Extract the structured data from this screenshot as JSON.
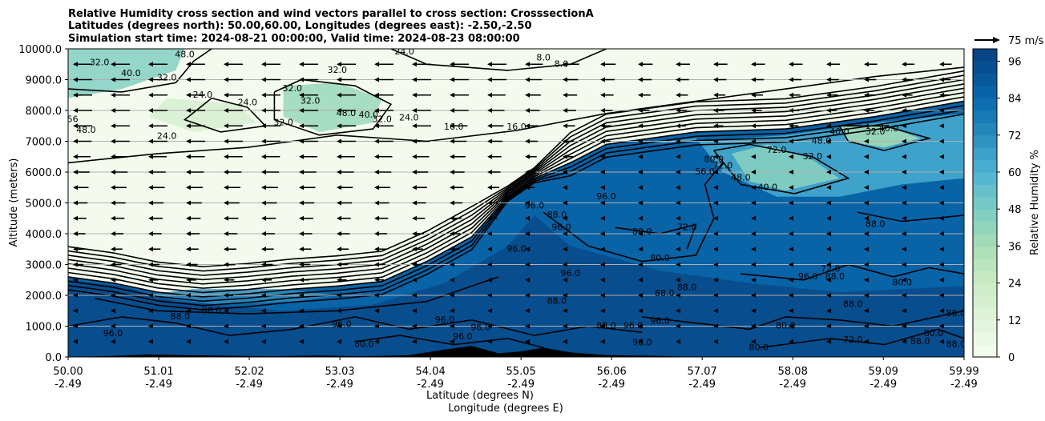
{
  "chart_data": {
    "type": "heatmap",
    "title_lines": [
      "Relative Humidity cross section and wind vectors parallel to cross section: CrosssectionA",
      "Latitudes (degrees north): 50.00,60.00, Longitudes (degrees east): -2.50,-2.50",
      "Simulation start time: 2024-08-21 00:00:00, Valid time: 2024-08-23 08:00:00"
    ],
    "ylabel": "Altitude (meters)",
    "xlabel_lat": "Latitude (degrees N)",
    "xlabel_lon": "Longitude (degrees E)",
    "x_range": [
      50.0,
      59.99
    ],
    "ylim": [
      0,
      10000
    ],
    "x_ticks_lat": [
      "50.00",
      "51.01",
      "52.02",
      "53.03",
      "54.04",
      "55.05",
      "56.06",
      "57.07",
      "58.08",
      "59.09",
      "59.99"
    ],
    "x_ticks_lon": [
      "-2.49",
      "-2.49",
      "-2.49",
      "-2.49",
      "-2.49",
      "-2.49",
      "-2.49",
      "-2.49",
      "-2.49",
      "-2.49",
      "-2.49"
    ],
    "y_ticks": [
      "0.0",
      "1000.0",
      "2000.0",
      "3000.0",
      "4000.0",
      "5000.0",
      "6000.0",
      "7000.0",
      "8000.0",
      "9000.0",
      "10000.0"
    ],
    "grid": "horizontal",
    "colorbar": {
      "label": "Relative Humidity %",
      "range": [
        0,
        100
      ],
      "ticks": [
        "0",
        "12",
        "24",
        "36",
        "48",
        "60",
        "72",
        "84",
        "96"
      ],
      "colormap": "GnBu",
      "levels": 25
    },
    "wind_reference": {
      "label": "75 m/s"
    },
    "dry_air_boundary": [
      [
        50.0,
        2600
      ],
      [
        50.5,
        2400
      ],
      [
        51.0,
        2100
      ],
      [
        51.5,
        1950
      ],
      [
        52.0,
        2050
      ],
      [
        52.5,
        2200
      ],
      [
        53.0,
        2300
      ],
      [
        53.5,
        2450
      ],
      [
        54.0,
        3100
      ],
      [
        54.5,
        3900
      ],
      [
        54.9,
        5200
      ],
      [
        55.2,
        5800
      ],
      [
        55.6,
        6300
      ],
      [
        56.0,
        6900
      ],
      [
        57.0,
        7300
      ],
      [
        58.0,
        7400
      ],
      [
        59.0,
        7800
      ],
      [
        59.99,
        8300
      ]
    ],
    "contour_labels": [
      {
        "text": "32.0",
        "x": 50.35,
        "y": 9550
      },
      {
        "text": "40.0",
        "x": 50.7,
        "y": 9200
      },
      {
        "text": "48.0",
        "x": 51.3,
        "y": 9800
      },
      {
        "text": "32.0",
        "x": 51.1,
        "y": 9050
      },
      {
        "text": "24.0",
        "x": 51.5,
        "y": 8500
      },
      {
        "text": "24.0",
        "x": 52.0,
        "y": 8250
      },
      {
        "text": "24.0",
        "x": 51.1,
        "y": 7150
      },
      {
        "text": "48.0",
        "x": 50.2,
        "y": 7350
      },
      {
        "text": "56",
        "x": 50.05,
        "y": 7700
      },
      {
        "text": "32.0",
        "x": 52.5,
        "y": 8700
      },
      {
        "text": "32.0",
        "x": 53.0,
        "y": 9300
      },
      {
        "text": "32.0",
        "x": 52.7,
        "y": 8300
      },
      {
        "text": "48.0",
        "x": 53.1,
        "y": 7900
      },
      {
        "text": "40.0",
        "x": 53.35,
        "y": 7850
      },
      {
        "text": "32.0",
        "x": 53.5,
        "y": 7700
      },
      {
        "text": "24.0",
        "x": 53.8,
        "y": 7750
      },
      {
        "text": "32.0",
        "x": 52.4,
        "y": 7600
      },
      {
        "text": "24.0",
        "x": 53.75,
        "y": 9900
      },
      {
        "text": "16.0",
        "x": 55.0,
        "y": 7450
      },
      {
        "text": "16.0",
        "x": 54.3,
        "y": 7450
      },
      {
        "text": "8.0",
        "x": 55.3,
        "y": 9700
      },
      {
        "text": "8.0",
        "x": 55.5,
        "y": 9500
      },
      {
        "text": "96.0",
        "x": 55.2,
        "y": 4900
      },
      {
        "text": "96.0",
        "x": 55.5,
        "y": 4200
      },
      {
        "text": "96.0",
        "x": 56.0,
        "y": 5200
      },
      {
        "text": "88.0",
        "x": 55.45,
        "y": 4600
      },
      {
        "text": "80.0",
        "x": 56.4,
        "y": 4050
      },
      {
        "text": "80.0",
        "x": 56.6,
        "y": 3200
      },
      {
        "text": "72.0",
        "x": 56.9,
        "y": 4200
      },
      {
        "text": "96.0",
        "x": 55.0,
        "y": 3500
      },
      {
        "text": "96.0",
        "x": 55.6,
        "y": 2700
      },
      {
        "text": "88.0",
        "x": 55.45,
        "y": 1800
      },
      {
        "text": "88.0",
        "x": 56.0,
        "y": 1000
      },
      {
        "text": "96.0",
        "x": 56.6,
        "y": 1150
      },
      {
        "text": "88.0",
        "x": 56.65,
        "y": 2050
      },
      {
        "text": "88.0",
        "x": 56.9,
        "y": 2250
      },
      {
        "text": "88.0",
        "x": 51.6,
        "y": 1500
      },
      {
        "text": "88.0",
        "x": 51.25,
        "y": 1300
      },
      {
        "text": "96.0",
        "x": 50.5,
        "y": 750
      },
      {
        "text": "80.0",
        "x": 53.3,
        "y": 400
      },
      {
        "text": "96.0",
        "x": 53.05,
        "y": 1050
      },
      {
        "text": "96.0",
        "x": 54.4,
        "y": 650
      },
      {
        "text": "96.0",
        "x": 54.2,
        "y": 1200
      },
      {
        "text": "96.0",
        "x": 54.6,
        "y": 950
      },
      {
        "text": "96.0",
        "x": 56.3,
        "y": 1000
      },
      {
        "text": "96.0",
        "x": 56.4,
        "y": 450
      },
      {
        "text": "96.0",
        "x": 58.25,
        "y": 2600
      },
      {
        "text": "88.0",
        "x": 58.55,
        "y": 2600
      },
      {
        "text": "88.0",
        "x": 58.75,
        "y": 1700
      },
      {
        "text": "72.0",
        "x": 58.5,
        "y": 2850
      },
      {
        "text": "88.0",
        "x": 59.0,
        "y": 4300
      },
      {
        "text": "80.0",
        "x": 59.3,
        "y": 2400
      },
      {
        "text": "80.0",
        "x": 58.0,
        "y": 1000
      },
      {
        "text": "80.0",
        "x": 57.7,
        "y": 300
      },
      {
        "text": "72.0",
        "x": 58.75,
        "y": 550
      },
      {
        "text": "80.0",
        "x": 59.65,
        "y": 750
      },
      {
        "text": "88.0",
        "x": 59.5,
        "y": 500
      },
      {
        "text": "80.0",
        "x": 59.9,
        "y": 1400
      },
      {
        "text": "88.0",
        "x": 59.9,
        "y": 400
      },
      {
        "text": "40.0",
        "x": 58.6,
        "y": 7300
      },
      {
        "text": "32.0",
        "x": 59.0,
        "y": 7300
      },
      {
        "text": "48.0",
        "x": 57.5,
        "y": 5800
      },
      {
        "text": "40.0",
        "x": 57.8,
        "y": 5500
      },
      {
        "text": "72.0",
        "x": 57.3,
        "y": 6200
      },
      {
        "text": "80.0",
        "x": 57.2,
        "y": 6400
      },
      {
        "text": "56.0",
        "x": 57.1,
        "y": 6000
      },
      {
        "text": "72.0",
        "x": 57.9,
        "y": 6700
      },
      {
        "text": "32.0",
        "x": 58.3,
        "y": 6500
      },
      {
        "text": "48.0",
        "x": 58.4,
        "y": 7000
      },
      {
        "text": "40.0",
        "x": 59.15,
        "y": 7400
      }
    ]
  }
}
